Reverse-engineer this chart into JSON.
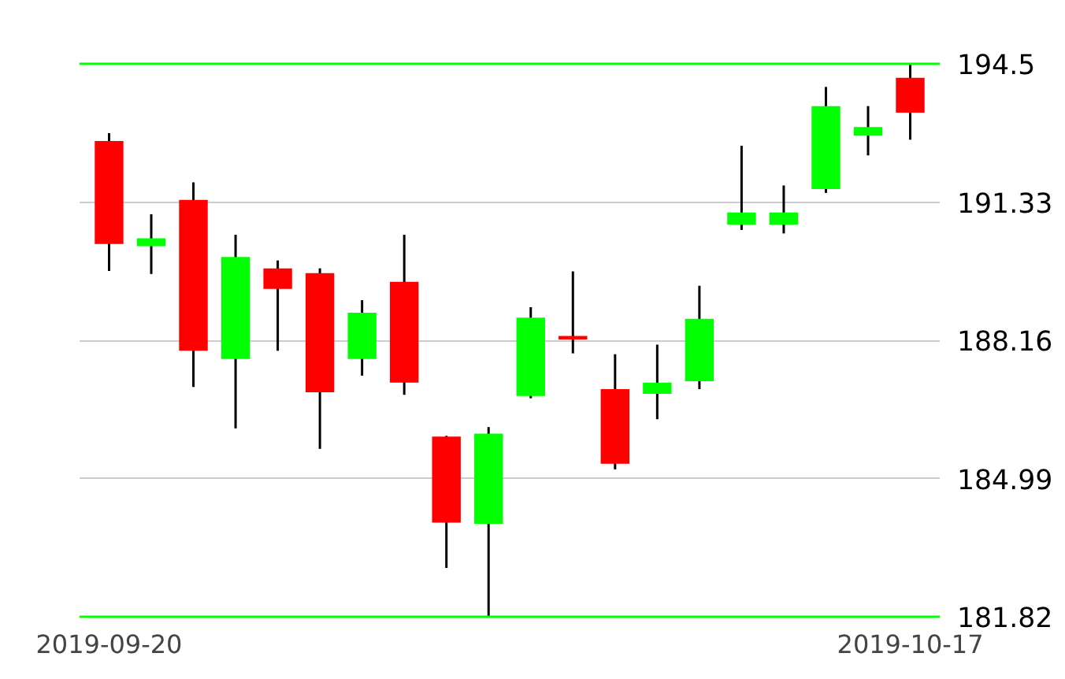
{
  "chart_data": {
    "type": "candlestick",
    "categories": [
      "2019-09-20",
      null,
      null,
      null,
      null,
      null,
      null,
      null,
      null,
      null,
      null,
      null,
      null,
      null,
      null,
      null,
      null,
      null,
      null,
      "2019-10-17"
    ],
    "ohlc": [
      [
        192.73,
        192.91,
        189.75,
        190.37
      ],
      [
        190.32,
        191.05,
        189.68,
        190.5
      ],
      [
        191.38,
        191.78,
        187.09,
        187.92
      ],
      [
        187.73,
        190.58,
        186.14,
        190.07
      ],
      [
        189.81,
        189.99,
        187.92,
        189.34
      ],
      [
        189.7,
        189.81,
        185.67,
        186.97
      ],
      [
        187.73,
        189.08,
        187.35,
        188.79
      ],
      [
        189.5,
        190.58,
        186.91,
        187.19
      ],
      [
        185.95,
        185.97,
        182.94,
        183.98
      ],
      [
        183.95,
        186.17,
        181.83,
        186.02
      ],
      [
        186.88,
        188.92,
        186.83,
        188.68
      ],
      [
        188.26,
        189.74,
        187.86,
        188.18
      ],
      [
        187.04,
        187.84,
        185.2,
        185.33
      ],
      [
        186.93,
        188.06,
        186.35,
        187.19
      ],
      [
        187.22,
        189.41,
        187.04,
        188.65
      ],
      [
        190.81,
        192.62,
        190.69,
        191.09
      ],
      [
        190.81,
        191.71,
        190.61,
        191.09
      ],
      [
        191.63,
        193.97,
        191.54,
        193.53
      ],
      [
        192.85,
        193.53,
        192.4,
        193.05
      ],
      [
        194.18,
        194.5,
        192.76,
        193.38
      ]
    ],
    "colors": [
      "#ff0000",
      "#00ff00",
      "#ff0000",
      "#00ff00",
      "#ff0000",
      "#ff0000",
      "#00ff00",
      "#ff0000",
      "#ff0000",
      "#00ff00",
      "#00ff00",
      "#ff0000",
      "#ff0000",
      "#00ff00",
      "#00ff00",
      "#00ff00",
      "#00ff00",
      "#00ff00",
      "#00ff00",
      "#ff0000"
    ],
    "ylim": [
      181.82,
      194.5
    ],
    "yticks": [
      181.82,
      184.99,
      188.16,
      191.33,
      194.5
    ],
    "grid": "y"
  }
}
